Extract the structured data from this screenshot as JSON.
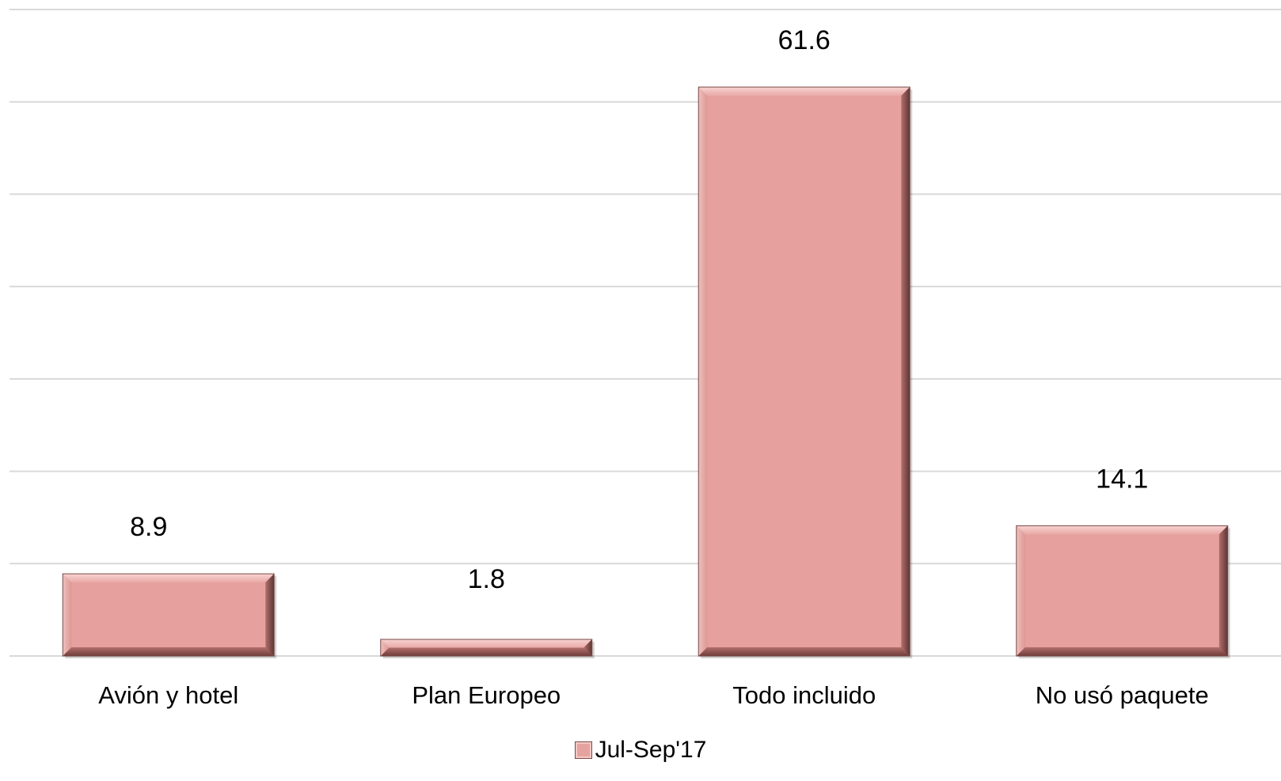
{
  "chart_data": {
    "type": "bar",
    "categories": [
      "Avión y hotel",
      "Plan Europeo",
      "Todo incluido",
      "No usó paquete"
    ],
    "series": [
      {
        "name": "Jul-Sep'17",
        "values": [
          8.9,
          1.8,
          61.6,
          14.1
        ],
        "data_labels": [
          "8.9",
          "1.8",
          "61.6",
          "14.1"
        ]
      }
    ],
    "ylim": [
      0,
      70
    ],
    "y_grid_step": 10,
    "grid": true,
    "legend_position": "bottom",
    "bar_color": "#e5a3a0",
    "bar_edge_color": "#7a4a48",
    "gridline_color": "#d9d9d9"
  }
}
